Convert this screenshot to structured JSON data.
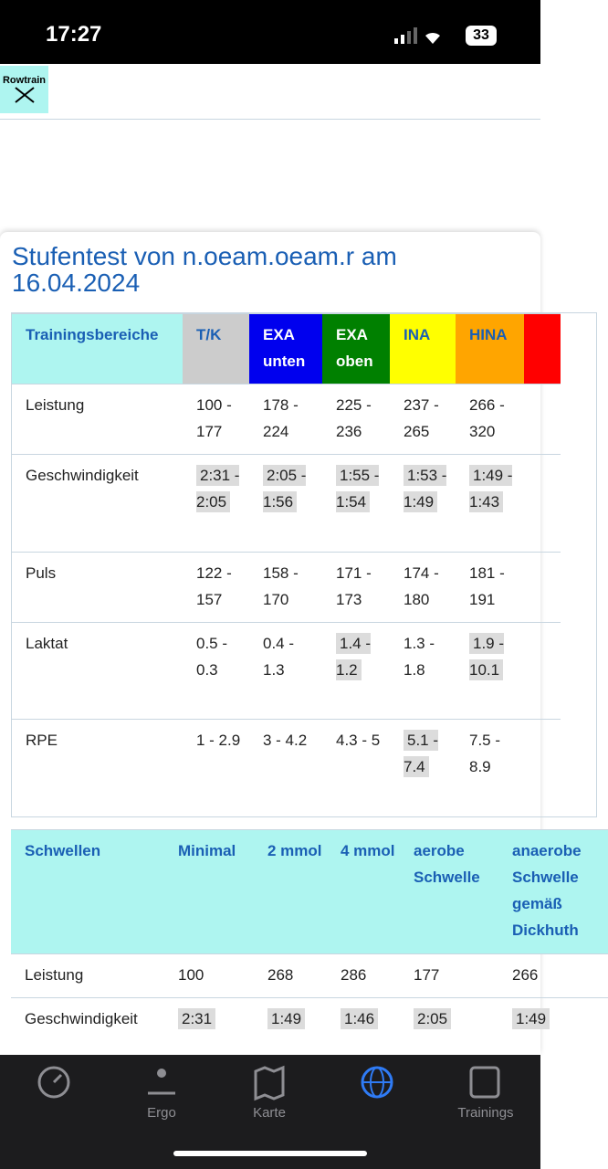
{
  "status_bar": {
    "time": "17:27",
    "battery": "33"
  },
  "header": {
    "logo": "Rowtrain"
  },
  "title": "Stufentest von n.oeam.oeam.r am 16.04.2024",
  "table1": {
    "header": [
      "Trainingsbereiche",
      "T/K",
      "EXA unten",
      "EXA oben",
      "INA",
      "HINA"
    ],
    "rows": [
      [
        "Leistung",
        "100 - 177",
        "178 - 224",
        "225 - 236",
        "237 - 265",
        "266 - 320"
      ],
      [
        "Geschwindigkeit",
        "2:31 - 2:05",
        "2:05 - 1:56",
        "1:55 - 1:54",
        "1:53 - 1:49",
        "1:49 - 1:43"
      ],
      [
        "Puls",
        "122 - 157",
        "158 - 170",
        "171 - 173",
        "174 - 180",
        "181 - 191"
      ],
      [
        "Laktat",
        "0.5 - 0.3",
        "0.4 - 1.3",
        "1.4 - 1.2",
        "1.3 - 1.8",
        "1.9 - 10.1"
      ],
      [
        "RPE",
        "1 - 2.9",
        "3 - 4.2",
        "4.3 - 5",
        "5.1 - 7.4",
        "7.5 - 8.9"
      ]
    ]
  },
  "table2": {
    "header": [
      "Schwellen",
      "Minimal",
      "2 mmol",
      "4 mmol",
      "aerobe Schwelle",
      "anaerobe Schwelle gemäß Dickhuth"
    ],
    "rows": [
      [
        "Leistung",
        "100",
        "268",
        "286",
        "177",
        "266"
      ],
      [
        "Geschwindigkeit",
        "2:31",
        "1:49",
        "1:46",
        "2:05",
        "1:49"
      ]
    ]
  },
  "tab_bar": {
    "tabs": [
      "Ergo",
      "Karte",
      "Trainings"
    ]
  }
}
